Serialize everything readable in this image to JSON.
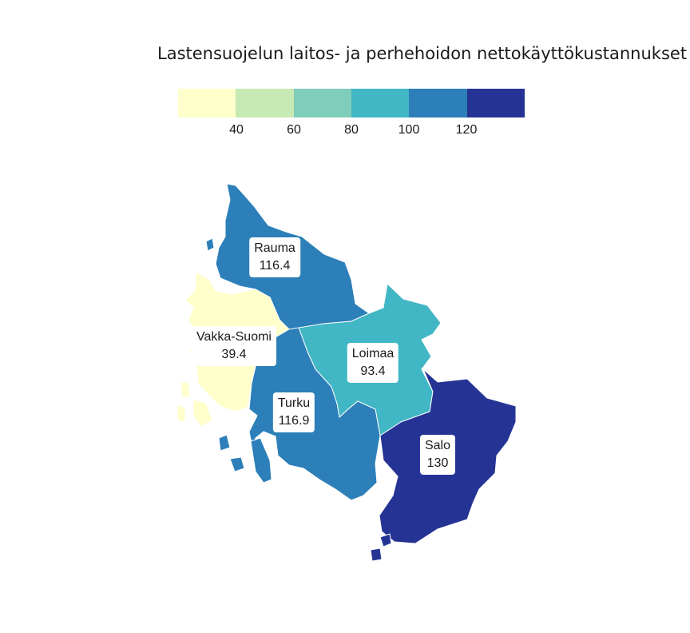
{
  "title": "Lastensuojelun laitos- ja perhehoidon nettokäyttökustannukset",
  "legend": {
    "colors": [
      "#ffffcc",
      "#c7e9b4",
      "#7fcdbb",
      "#41b6c4",
      "#2c7fb8",
      "#253494"
    ],
    "ticks": [
      "40",
      "60",
      "80",
      "100",
      "120"
    ]
  },
  "regions": [
    {
      "name": "Rauma",
      "value": "116.4",
      "color": "#2c7fb8"
    },
    {
      "name": "Vakka-Suomi",
      "value": "39.4",
      "color": "#ffffcc"
    },
    {
      "name": "Loimaa",
      "value": "93.4",
      "color": "#41b6c4"
    },
    {
      "name": "Turku",
      "value": "116.9",
      "color": "#2c7fb8"
    },
    {
      "name": "Salo",
      "value": "130",
      "color": "#253494"
    }
  ]
}
